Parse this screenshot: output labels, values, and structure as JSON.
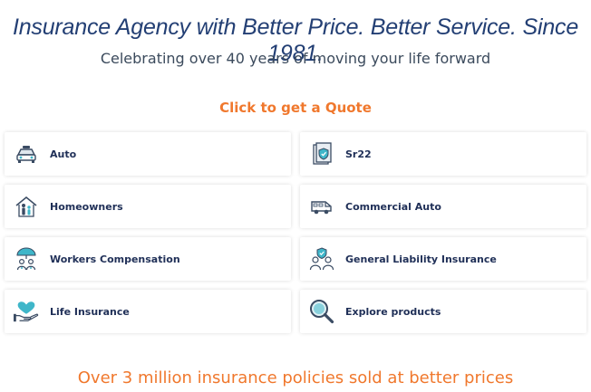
{
  "hero": {
    "title": "Insurance Agency with Better Price. Better Service. Since 1981.",
    "subtitle": "Celebrating over 40 years of moving your life forward"
  },
  "cta": {
    "label": "Click to get a Quote"
  },
  "products": [
    {
      "label": "Auto",
      "icon": "car-icon"
    },
    {
      "label": "Sr22",
      "icon": "document-shield-icon"
    },
    {
      "label": "Homeowners",
      "icon": "house-family-icon"
    },
    {
      "label": "Commercial Auto",
      "icon": "van-icon"
    },
    {
      "label": "Workers Compensation",
      "icon": "umbrella-workers-icon"
    },
    {
      "label": "General Liability Insurance",
      "icon": "people-shield-icon"
    },
    {
      "label": "Life Insurance",
      "icon": "heart-hand-icon"
    },
    {
      "label": "Explore products",
      "icon": "magnifier-icon"
    }
  ],
  "footer": {
    "tagline": "Over 3 million insurance policies sold at better prices"
  },
  "colors": {
    "title": "#233f74",
    "accent": "#f0782d",
    "icon_teal": "#3fb6c9",
    "label": "#1f2f57"
  }
}
